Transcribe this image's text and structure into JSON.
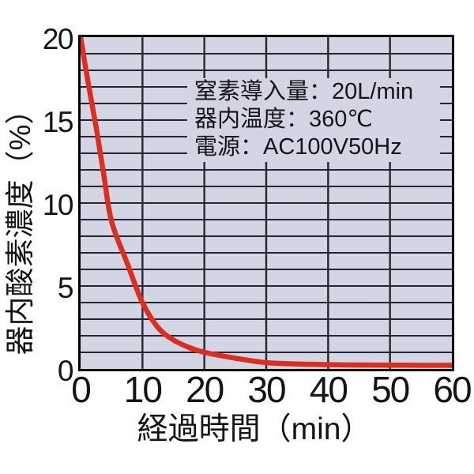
{
  "page": {
    "background": "#ffffff"
  },
  "chart_data": {
    "type": "line",
    "title": "",
    "xlabel": "経過時間（min）",
    "ylabel": "器内酸素濃度（%）",
    "xlim": [
      0,
      60
    ],
    "ylim": [
      0,
      20
    ],
    "x_ticks": [
      0,
      10,
      20,
      30,
      40,
      50,
      60
    ],
    "y_ticks": [
      0,
      5,
      10,
      15,
      20
    ],
    "y_minor_step": 1,
    "x_gridline_step": 10,
    "grid": "on",
    "legend": "none",
    "colors": {
      "plot_bg": "#d3d5e4",
      "grid": "#26262e",
      "border": "#000000",
      "curve": "#db2d20",
      "text": "#141418"
    },
    "series": [
      {
        "name": "器内酸素濃度",
        "color": "#db2d20",
        "points": [
          [
            0,
            20
          ],
          [
            1.25,
            17.2
          ],
          [
            2.5,
            14.6
          ],
          [
            3.75,
            11.7
          ],
          [
            5,
            8.9
          ],
          [
            7.5,
            6.4
          ],
          [
            10,
            4.0
          ],
          [
            12.5,
            2.5
          ],
          [
            15,
            1.75
          ],
          [
            17.5,
            1.3
          ],
          [
            20,
            1.0
          ],
          [
            25,
            0.65
          ],
          [
            30,
            0.38
          ],
          [
            35,
            0.3
          ],
          [
            40,
            0.26
          ],
          [
            45,
            0.24
          ],
          [
            50,
            0.23
          ],
          [
            55,
            0.22
          ],
          [
            60,
            0.22
          ]
        ]
      }
    ],
    "annotation": {
      "lines": [
        "窒素導入量：20L/min",
        "器内温度：360℃",
        "電源：AC100V50Hz"
      ]
    }
  }
}
